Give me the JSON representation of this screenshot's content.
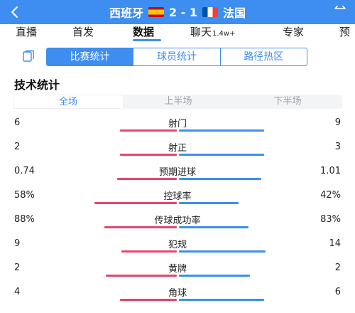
{
  "header": {
    "home_team": "西班牙",
    "away_team": "法国",
    "score": "2 - 1",
    "home_flag": "spain-flag",
    "away_flag": "france-flag",
    "accent_color": "#3d8ef0"
  },
  "nav": {
    "tabs": [
      {
        "label": "直播"
      },
      {
        "label": "首发"
      },
      {
        "label": "数据",
        "active": true
      },
      {
        "label": "聊天",
        "badge": "1.4w+"
      },
      {
        "label": "专家"
      },
      {
        "label": "预"
      }
    ]
  },
  "subtabs": [
    {
      "label": "比赛统计",
      "active": true
    },
    {
      "label": "球员统计"
    },
    {
      "label": "路径热区"
    }
  ],
  "section_title": "技术统计",
  "periods": [
    {
      "label": "全场",
      "active": true
    },
    {
      "label": "上半场"
    },
    {
      "label": "下半场"
    }
  ],
  "stats": [
    {
      "name": "射门",
      "home": "6",
      "away": "9",
      "home_share": 0.4,
      "away_share": 0.6
    },
    {
      "name": "射正",
      "home": "2",
      "away": "3",
      "home_share": 0.4,
      "away_share": 0.6
    },
    {
      "name": "预期进球",
      "home": "0.74",
      "away": "1.01",
      "home_share": 0.42,
      "away_share": 0.58
    },
    {
      "name": "控球率",
      "home": "58%",
      "away": "42%",
      "home_share": 0.58,
      "away_share": 0.42
    },
    {
      "name": "传球成功率",
      "home": "88%",
      "away": "83%",
      "home_share": 0.51,
      "away_share": 0.49
    },
    {
      "name": "犯规",
      "home": "9",
      "away": "14",
      "home_share": 0.39,
      "away_share": 0.61
    },
    {
      "name": "黄牌",
      "home": "2",
      "away": "2",
      "home_share": 0.5,
      "away_share": 0.5
    },
    {
      "name": "角球",
      "home": "4",
      "away": "6",
      "home_share": 0.4,
      "away_share": 0.6
    }
  ],
  "colors": {
    "home_bar": "#e8456b",
    "away_bar": "#3d8ef0"
  }
}
